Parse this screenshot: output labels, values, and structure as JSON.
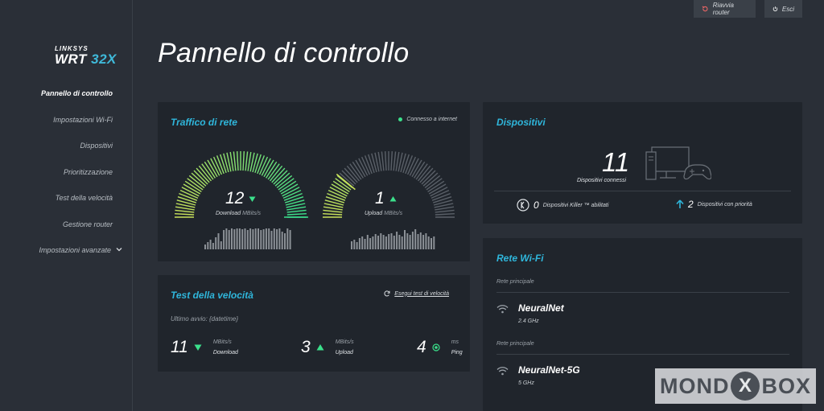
{
  "header": {
    "restart_label": "Riavvia router",
    "logout_label": "Esci"
  },
  "logo": {
    "brand": "LINKSYS",
    "model_prefix": "WRT",
    "model_suffix": "32X"
  },
  "sidebar": {
    "items": [
      {
        "label": "Pannello di controllo",
        "active": true
      },
      {
        "label": "Impostazioni Wi-Fi"
      },
      {
        "label": "Dispositivi"
      },
      {
        "label": "Prioritizzazione"
      },
      {
        "label": "Test della velocità"
      },
      {
        "label": "Gestione router"
      },
      {
        "label": "Impostazioni avanzate"
      }
    ]
  },
  "page": {
    "title": "Pannello di controllo"
  },
  "traffic": {
    "title": "Traffico di rete",
    "status": "Connesso a internet",
    "download": {
      "value": "12",
      "label": "Download",
      "unit": "MBits/s",
      "level": 1.0
    },
    "upload": {
      "value": "1",
      "label": "Upload",
      "unit": "MBits/s",
      "level": 0.22
    }
  },
  "speedtest": {
    "title": "Test della velocità",
    "run_label": "Esegui test di velocità",
    "last_run": "Ultimo avvio: {datetime}",
    "download": {
      "value": "11",
      "unit": "MBits/s",
      "label": "Download"
    },
    "upload": {
      "value": "3",
      "unit": "MBits/s",
      "label": "Upload"
    },
    "ping": {
      "value": "4",
      "unit": "ms",
      "label": "Ping"
    }
  },
  "devices": {
    "title": "Dispositivi",
    "count": "11",
    "count_label": "Dispositivi connessi",
    "killer_count": "0",
    "killer_label": "Dispositivi Killer ™ abilitati",
    "priority_count": "2",
    "priority_label": "Dispositivi con priorità"
  },
  "wifi": {
    "title": "Rete Wi-Fi",
    "networks": [
      {
        "label": "Rete principale",
        "name": "NeuralNet",
        "band": "2.4 GHz"
      },
      {
        "label": "Rete principale",
        "name": "NeuralNet-5G",
        "band": "5 GHz"
      }
    ]
  },
  "watermark": {
    "left": "MOND",
    "x": "X",
    "right": "BOX"
  },
  "colors": {
    "accent": "#2fb6db",
    "ok": "#3be08b",
    "gauge_low": "#c9e15a",
    "gauge_high": "#3be08b",
    "gauge_idle": "#5a6068"
  }
}
